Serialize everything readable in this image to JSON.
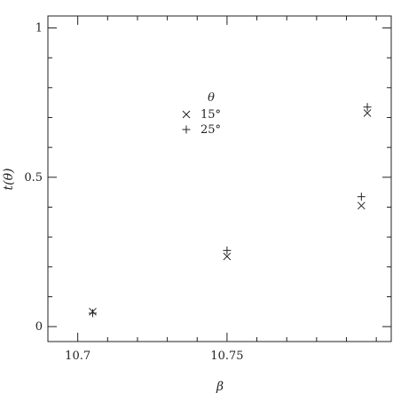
{
  "chart_data": {
    "type": "scatter",
    "xlabel": "β",
    "ylabel": "t(θ)",
    "xlim": [
      10.69,
      10.805
    ],
    "ylim": [
      -0.05,
      1.04
    ],
    "x_major_ticks": [
      10.7,
      10.75
    ],
    "x_tick_labels": [
      "10.7",
      "10.75"
    ],
    "x_minor_ticks": [
      10.69,
      10.7,
      10.71,
      10.72,
      10.73,
      10.74,
      10.75,
      10.76,
      10.77,
      10.78,
      10.79,
      10.8
    ],
    "y_major_ticks": [
      0,
      0.5,
      1
    ],
    "y_tick_labels": [
      "0",
      "0.5",
      "1"
    ],
    "y_minor_ticks": [
      0,
      0.1,
      0.2,
      0.3,
      0.4,
      0.5,
      0.6,
      0.7,
      0.8,
      0.9,
      1.0
    ],
    "grid": false,
    "legend": {
      "title": "θ",
      "placement": "top-left-center",
      "entries": [
        {
          "label": "15°",
          "marker": "x"
        },
        {
          "label": "25°",
          "marker": "+"
        }
      ]
    },
    "series": [
      {
        "name": "15°",
        "marker": "x",
        "points": [
          [
            10.705,
            0.05
          ],
          [
            10.75,
            0.235
          ],
          [
            10.795,
            0.405
          ],
          [
            10.797,
            0.715
          ]
        ]
      },
      {
        "name": "25°",
        "marker": "+",
        "points": [
          [
            10.705,
            0.045
          ],
          [
            10.75,
            0.255
          ],
          [
            10.795,
            0.435
          ],
          [
            10.797,
            0.735
          ]
        ]
      }
    ]
  }
}
